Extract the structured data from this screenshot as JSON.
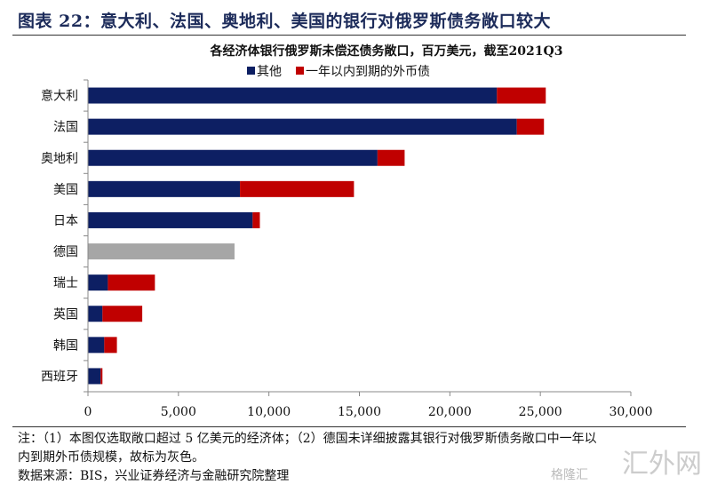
{
  "figure_title": "图表 22：意大利、法国、奥地利、美国的银行对俄罗斯债务敞口较大",
  "notes": {
    "line1": "注：（1）本图仅选取敞口超过 5 亿美元的经济体；（2）德国未详细披露其银行对俄罗斯债务敞口中一年以",
    "line2": "内到期外币债规模，故标为灰色。",
    "source": "数据来源：BIS，兴业证券经济与金融研究院整理"
  },
  "watermark": {
    "main": "汇外网",
    "sub": "格隆汇"
  },
  "chart_data": {
    "type": "bar",
    "orientation": "horizontal",
    "stacked": true,
    "title": "各经济体银行俄罗斯未偿还债务敞口，百万美元，截至2021Q3",
    "legend_position": "top",
    "categories": [
      "意大利",
      "法国",
      "奥地利",
      "美国",
      "日本",
      "德国",
      "瑞士",
      "英国",
      "韩国",
      "西班牙"
    ],
    "series": [
      {
        "name": "其他",
        "color": "#0d1f63",
        "values": [
          22600,
          23700,
          16000,
          8400,
          9100,
          null,
          1100,
          800,
          900,
          700
        ]
      },
      {
        "name": "一年以内到期的外币债",
        "color": "#c00000",
        "values": [
          2700,
          1500,
          1500,
          6300,
          400,
          null,
          2600,
          2200,
          700,
          100
        ]
      }
    ],
    "undisclosed": {
      "category": "德国",
      "color": "#a6a6a6",
      "value": 8100
    },
    "xlim": [
      0,
      30000
    ],
    "xticks": [
      0,
      5000,
      10000,
      15000,
      20000,
      25000,
      30000
    ],
    "xtick_labels": [
      "0",
      "5,000",
      "10,000",
      "15,000",
      "20,000",
      "25,000",
      "30,000"
    ],
    "grid": false
  }
}
